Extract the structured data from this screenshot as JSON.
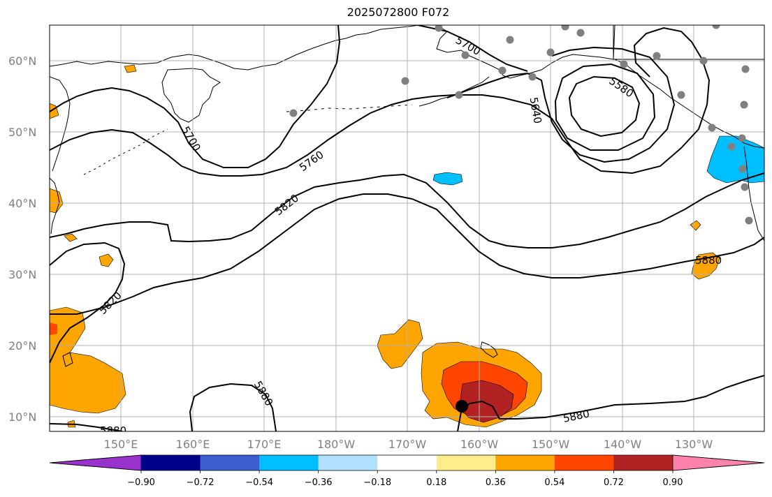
{
  "title": "2025072800 F072",
  "lat_labels": [
    "60°N",
    "50°N",
    "40°N",
    "30°N",
    "20°N",
    "10°N"
  ],
  "lon_labels": [
    "150°E",
    "160°E",
    "170°E",
    "180°W",
    "170°W",
    "160°W",
    "150°W",
    "140°W",
    "130°W"
  ],
  "contour_labels": [
    "5700",
    "5700",
    "5640",
    "5580",
    "5760",
    "5820",
    "5820",
    "5880",
    "5880",
    "5880",
    "5880"
  ],
  "colorbar": {
    "ticks": [
      "−0.90",
      "−0.72",
      "−0.54",
      "−0.36",
      "−0.18",
      "0.18",
      "0.36",
      "0.54",
      "0.72",
      "0.90"
    ],
    "colors": [
      "#9932CC",
      "#00008B",
      "#3A5FCD",
      "#00BFFF",
      "#B0E2FF",
      "#FFFFFF",
      "#FFEC8B",
      "#FFA500",
      "#FF4500",
      "#B22222",
      "#FF82AB"
    ]
  },
  "colors": {
    "land_line": "#000000",
    "grid": "#b0b0b0",
    "station": "#808080",
    "positive_fill": "#FFA500",
    "mid_fill": "#FF4500",
    "high_fill": "#B22222",
    "negative_fill": "#00BFFF"
  }
}
